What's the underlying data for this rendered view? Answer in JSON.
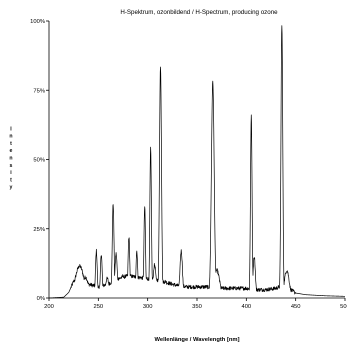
{
  "chart_data": {
    "type": "line",
    "title": "H-Spektrum, ozonbildend / H-Spectrum, producing ozone",
    "xlabel": "Wellenlänge / Wavelength [nm]",
    "ylabel": "Intensity",
    "xlim": [
      200,
      500
    ],
    "ylim": [
      0,
      100
    ],
    "x_ticks": [
      "200",
      "250",
      "300",
      "350",
      "400",
      "450",
      "500"
    ],
    "y_ticks": [
      "0%",
      "25%",
      "50%",
      "75%",
      "100%"
    ],
    "grid": false,
    "legend": "none",
    "line_color": "#000000",
    "peaks": [
      {
        "x": 231,
        "y": 11.5,
        "w": 4.5
      },
      {
        "x": 237,
        "y": 7.5,
        "w": 3
      },
      {
        "x": 248,
        "y": 17,
        "w": 0.9
      },
      {
        "x": 253,
        "y": 16,
        "w": 0.9
      },
      {
        "x": 259,
        "y": 7,
        "w": 2
      },
      {
        "x": 265,
        "y": 34,
        "w": 0.9
      },
      {
        "x": 268,
        "y": 16,
        "w": 1.2
      },
      {
        "x": 275,
        "y": 8,
        "w": 2.5
      },
      {
        "x": 281,
        "y": 22,
        "w": 0.9
      },
      {
        "x": 289,
        "y": 17,
        "w": 0.9
      },
      {
        "x": 297,
        "y": 33,
        "w": 0.8
      },
      {
        "x": 303,
        "y": 54,
        "w": 0.8
      },
      {
        "x": 307,
        "y": 12,
        "w": 1.5
      },
      {
        "x": 313,
        "y": 84,
        "w": 1.0
      },
      {
        "x": 318,
        "y": 6,
        "w": 3
      },
      {
        "x": 334,
        "y": 17,
        "w": 1.3
      },
      {
        "x": 366,
        "y": 78,
        "w": 1.4
      },
      {
        "x": 370,
        "y": 10,
        "w": 3
      },
      {
        "x": 405,
        "y": 66,
        "w": 0.8
      },
      {
        "x": 408,
        "y": 15,
        "w": 1.2
      },
      {
        "x": 436,
        "y": 99,
        "w": 0.9
      },
      {
        "x": 441,
        "y": 10,
        "w": 2.5
      }
    ],
    "baseline": [
      [
        200,
        0
      ],
      [
        215,
        0.3
      ],
      [
        220,
        2
      ],
      [
        225,
        6
      ],
      [
        230,
        8
      ],
      [
        240,
        5
      ],
      [
        250,
        4
      ],
      [
        260,
        5
      ],
      [
        270,
        7
      ],
      [
        280,
        8
      ],
      [
        290,
        7.5
      ],
      [
        300,
        7
      ],
      [
        310,
        6.5
      ],
      [
        320,
        5.5
      ],
      [
        330,
        4.5
      ],
      [
        340,
        4
      ],
      [
        350,
        4
      ],
      [
        360,
        4
      ],
      [
        370,
        3.5
      ],
      [
        380,
        3.5
      ],
      [
        390,
        3.5
      ],
      [
        400,
        3.5
      ],
      [
        410,
        3
      ],
      [
        420,
        3
      ],
      [
        430,
        3.5
      ],
      [
        440,
        5
      ],
      [
        445,
        3
      ],
      [
        450,
        1.8
      ],
      [
        460,
        1.2
      ],
      [
        470,
        1.0
      ],
      [
        480,
        0.8
      ],
      [
        490,
        0.7
      ],
      [
        500,
        0.6
      ]
    ]
  }
}
